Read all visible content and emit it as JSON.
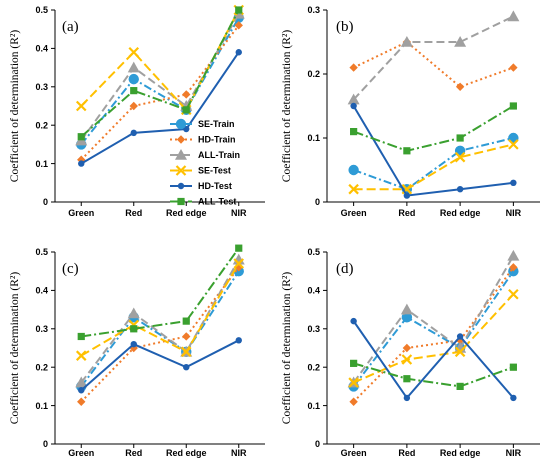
{
  "figure": {
    "series_styles": [
      {
        "name": "SE-Train",
        "color": "#2e9bd6",
        "dash": "8,3,2,3",
        "marker": "circle"
      },
      {
        "name": "HD-Train",
        "color": "#f07b2a",
        "dash": "2,3",
        "marker": "diamond"
      },
      {
        "name": "ALL-Train",
        "color": "#a0a0a0",
        "dash": "8,4",
        "marker": "triangle"
      },
      {
        "name": "SE-Test",
        "color": "#ffc000",
        "dash": "9,4",
        "marker": "x"
      },
      {
        "name": "HD-Test",
        "color": "#1f5fb0",
        "dash": "",
        "marker": "dot"
      },
      {
        "name": "ALL-Test",
        "color": "#3aa02f",
        "dash": "10,3,2,3",
        "marker": "square"
      }
    ]
  },
  "chart_data": [
    {
      "type": "line",
      "panel_label": "(a)",
      "ylabel": "Coefficient of determination (R²)",
      "categories": [
        "Green",
        "Red",
        "Red edge",
        "NIR"
      ],
      "ylim": [
        0,
        0.5
      ],
      "yticks": [
        "0",
        "0.1",
        "0.2",
        "0.3",
        "0.4",
        "0.5"
      ],
      "legend": "inside-right",
      "series": [
        {
          "name": "SE-Train",
          "values": [
            0.15,
            0.32,
            0.24,
            0.48
          ]
        },
        {
          "name": "HD-Train",
          "values": [
            0.11,
            0.25,
            0.28,
            0.46
          ]
        },
        {
          "name": "ALL-Train",
          "values": [
            0.16,
            0.35,
            0.25,
            0.49
          ]
        },
        {
          "name": "SE-Test",
          "values": [
            0.25,
            0.39,
            0.24,
            0.5
          ]
        },
        {
          "name": "HD-Test",
          "values": [
            0.1,
            0.18,
            0.19,
            0.39
          ]
        },
        {
          "name": "ALL-Test",
          "values": [
            0.17,
            0.29,
            0.24,
            0.5
          ]
        }
      ]
    },
    {
      "type": "line",
      "panel_label": "(b)",
      "ylabel": "Coefficient of determination (R²)",
      "categories": [
        "Green",
        "Red",
        "Red edge",
        "NIR"
      ],
      "ylim": [
        0,
        0.3
      ],
      "yticks": [
        "0",
        "0.1",
        "0.2",
        "0.3"
      ],
      "series": [
        {
          "name": "SE-Train",
          "values": [
            0.05,
            0.02,
            0.08,
            0.1
          ]
        },
        {
          "name": "HD-Train",
          "values": [
            0.21,
            0.25,
            0.18,
            0.21
          ]
        },
        {
          "name": "ALL-Train",
          "values": [
            0.16,
            0.25,
            0.25,
            0.29
          ]
        },
        {
          "name": "SE-Test",
          "values": [
            0.02,
            0.02,
            0.07,
            0.09
          ]
        },
        {
          "name": "HD-Test",
          "values": [
            0.15,
            0.01,
            0.02,
            0.03
          ]
        },
        {
          "name": "ALL-Test",
          "values": [
            0.11,
            0.08,
            0.1,
            0.15
          ]
        }
      ]
    },
    {
      "type": "line",
      "panel_label": "(c)",
      "ylabel": "Coefficient of determination (R²)",
      "categories": [
        "Green",
        "Red",
        "Red edge",
        "NIR"
      ],
      "ylim": [
        0,
        0.5
      ],
      "yticks": [
        "0",
        "0.1",
        "0.2",
        "0.3",
        "0.4",
        "0.5"
      ],
      "series": [
        {
          "name": "SE-Train",
          "values": [
            0.15,
            0.33,
            0.24,
            0.45
          ]
        },
        {
          "name": "HD-Train",
          "values": [
            0.11,
            0.25,
            0.28,
            0.46
          ]
        },
        {
          "name": "ALL-Train",
          "values": [
            0.16,
            0.34,
            0.24,
            0.48
          ]
        },
        {
          "name": "SE-Test",
          "values": [
            0.23,
            0.31,
            0.24,
            0.47
          ]
        },
        {
          "name": "HD-Test",
          "values": [
            0.14,
            0.26,
            0.2,
            0.27
          ]
        },
        {
          "name": "ALL-Test",
          "values": [
            0.28,
            0.3,
            0.32,
            0.51
          ]
        }
      ]
    },
    {
      "type": "line",
      "panel_label": "(d)",
      "ylabel": "Coefficient of determination (R²)",
      "categories": [
        "Green",
        "Red",
        "Red edge",
        "NIR"
      ],
      "ylim": [
        0,
        0.5
      ],
      "yticks": [
        "0",
        "0.1",
        "0.2",
        "0.3",
        "0.4",
        "0.5"
      ],
      "series": [
        {
          "name": "SE-Train",
          "values": [
            0.15,
            0.33,
            0.25,
            0.45
          ]
        },
        {
          "name": "HD-Train",
          "values": [
            0.11,
            0.25,
            0.27,
            0.46
          ]
        },
        {
          "name": "ALL-Train",
          "values": [
            0.16,
            0.35,
            0.25,
            0.49
          ]
        },
        {
          "name": "SE-Test",
          "values": [
            0.16,
            0.22,
            0.24,
            0.39
          ]
        },
        {
          "name": "HD-Test",
          "values": [
            0.32,
            0.12,
            0.28,
            0.12
          ]
        },
        {
          "name": "ALL-Test",
          "values": [
            0.21,
            0.17,
            0.15,
            0.2
          ]
        }
      ]
    }
  ]
}
